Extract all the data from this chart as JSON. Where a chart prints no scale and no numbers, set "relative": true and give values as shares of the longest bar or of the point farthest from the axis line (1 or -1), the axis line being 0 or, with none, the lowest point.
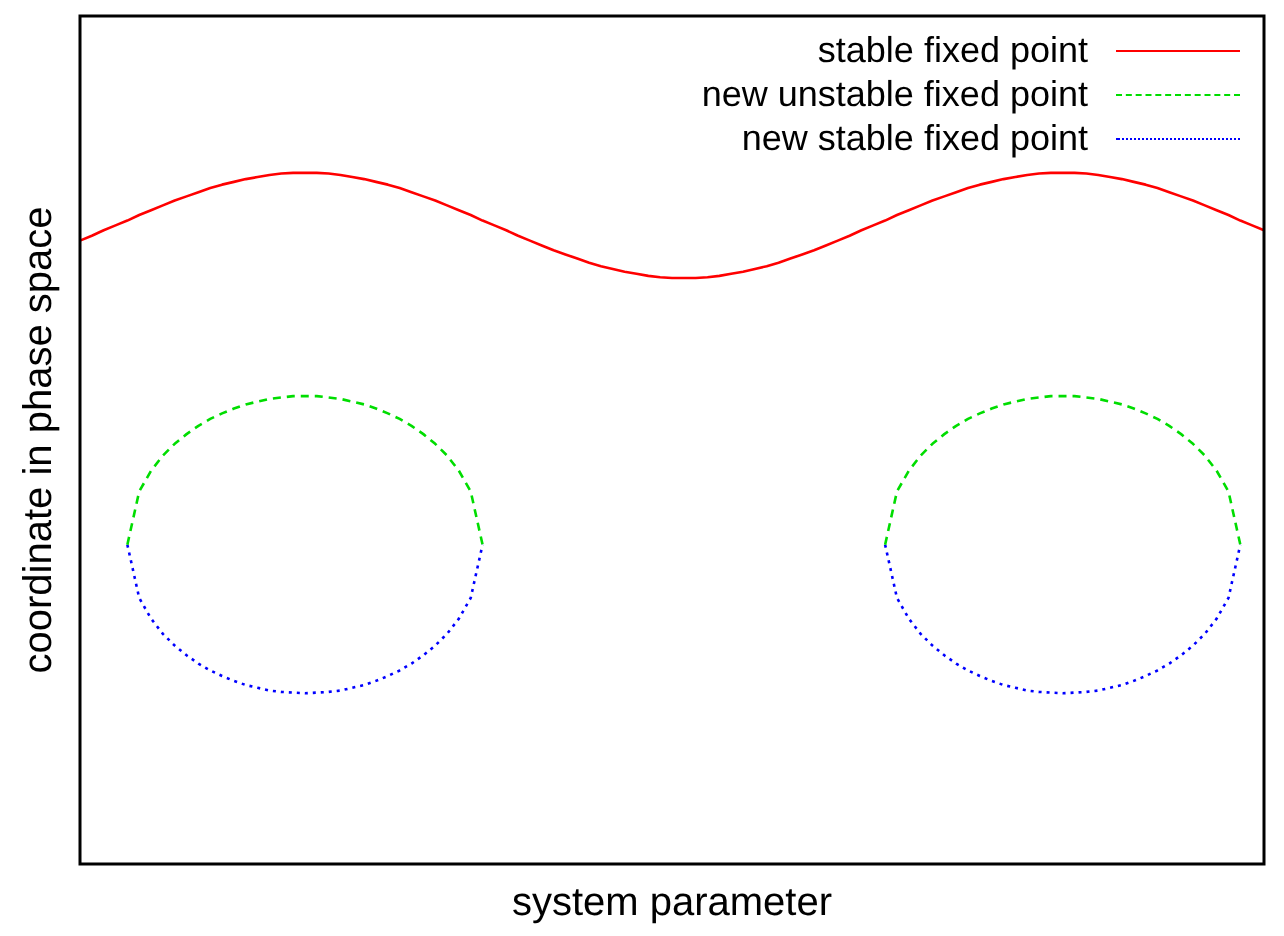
{
  "chart_data": {
    "type": "line",
    "relative": true,
    "xlabel": "system parameter",
    "ylabel": "coordinate in phase space",
    "legend": "top right",
    "tick_labels": false,
    "categories": [
      null,
      null,
      null,
      null,
      null,
      null,
      null,
      null,
      null,
      null,
      null,
      null,
      null,
      null,
      null,
      null,
      null,
      null,
      null,
      null,
      null,
      null,
      null,
      null,
      null,
      null,
      null,
      null,
      null,
      null,
      null,
      null,
      null,
      null,
      null,
      null,
      null,
      null,
      null,
      null,
      null,
      null,
      null,
      null,
      null,
      null,
      null,
      null,
      null,
      null,
      null,
      null,
      null,
      null,
      null,
      null,
      null,
      null,
      null,
      null,
      null,
      null,
      null,
      null,
      null,
      null,
      null,
      null,
      null,
      null,
      null,
      null,
      null,
      null,
      null,
      null,
      null,
      null,
      null,
      null,
      null,
      null,
      null,
      null,
      null,
      null,
      null,
      null,
      null,
      null,
      null,
      null,
      null,
      null,
      null,
      null,
      null,
      null,
      null,
      null,
      null
    ],
    "series": [
      {
        "name": "stable fixed point",
        "color": "#ff0000",
        "line_style": "solid",
        "values": [
          0.902,
          0.909,
          0.917,
          0.924,
          0.931,
          0.939,
          0.946,
          0.953,
          0.96,
          0.966,
          0.972,
          0.978,
          0.983,
          0.987,
          0.991,
          0.994,
          0.997,
          0.999,
          1.0,
          1.0,
          1.0,
          0.999,
          0.997,
          0.994,
          0.991,
          0.987,
          0.983,
          0.978,
          0.972,
          0.966,
          0.96,
          0.953,
          0.946,
          0.939,
          0.931,
          0.924,
          0.917,
          0.909,
          0.902,
          0.895,
          0.888,
          0.882,
          0.876,
          0.87,
          0.865,
          0.861,
          0.857,
          0.854,
          0.851,
          0.849,
          0.848,
          0.848,
          0.848,
          0.849,
          0.851,
          0.854,
          0.857,
          0.861,
          0.865,
          0.87,
          0.876,
          0.882,
          0.888,
          0.895,
          0.902,
          0.909,
          0.917,
          0.924,
          0.931,
          0.939,
          0.946,
          0.953,
          0.96,
          0.966,
          0.972,
          0.978,
          0.983,
          0.987,
          0.991,
          0.994,
          0.997,
          0.999,
          1.0,
          1.0,
          1.0,
          0.999,
          0.997,
          0.994,
          0.991,
          0.987,
          0.983,
          0.978,
          0.972,
          0.966,
          0.96,
          0.953,
          0.946,
          0.939,
          0.931,
          0.924,
          0.917
        ]
      },
      {
        "name": "new unstable fixed point",
        "color": "#00dd00",
        "line_style": "dashed",
        "values": [
          null,
          null,
          null,
          null,
          0.462,
          0.539,
          0.569,
          0.591,
          0.608,
          0.622,
          0.634,
          0.644,
          0.652,
          0.659,
          0.665,
          0.669,
          0.673,
          0.675,
          0.677,
          0.677,
          0.677,
          0.675,
          0.673,
          0.669,
          0.665,
          0.659,
          0.652,
          0.644,
          0.634,
          0.622,
          0.608,
          0.591,
          0.569,
          0.539,
          0.462,
          null,
          null,
          null,
          null,
          null,
          null,
          null,
          null,
          null,
          null,
          null,
          null,
          null,
          null,
          null,
          null,
          null,
          null,
          null,
          null,
          null,
          null,
          null,
          null,
          null,
          null,
          null,
          null,
          null,
          null,
          null,
          null,
          null,
          0.462,
          0.539,
          0.569,
          0.591,
          0.608,
          0.622,
          0.634,
          0.644,
          0.652,
          0.659,
          0.665,
          0.669,
          0.673,
          0.675,
          0.677,
          0.677,
          0.677,
          0.675,
          0.673,
          0.669,
          0.665,
          0.659,
          0.652,
          0.644,
          0.634,
          0.622,
          0.608,
          0.591,
          0.569,
          0.539,
          0.462,
          null,
          null
        ]
      },
      {
        "name": "new stable fixed point",
        "color": "#0000ff",
        "line_style": "dotted",
        "values": [
          null,
          null,
          null,
          null,
          0.462,
          0.385,
          0.355,
          0.333,
          0.316,
          0.302,
          0.29,
          0.28,
          0.272,
          0.265,
          0.259,
          0.255,
          0.251,
          0.249,
          0.248,
          0.247,
          0.248,
          0.249,
          0.251,
          0.255,
          0.259,
          0.265,
          0.272,
          0.28,
          0.29,
          0.302,
          0.316,
          0.333,
          0.355,
          0.385,
          0.462,
          null,
          null,
          null,
          null,
          null,
          null,
          null,
          null,
          null,
          null,
          null,
          null,
          null,
          null,
          null,
          null,
          null,
          null,
          null,
          null,
          null,
          null,
          null,
          null,
          null,
          null,
          null,
          null,
          null,
          null,
          null,
          null,
          null,
          0.462,
          0.385,
          0.355,
          0.333,
          0.316,
          0.302,
          0.29,
          0.28,
          0.272,
          0.265,
          0.259,
          0.255,
          0.251,
          0.249,
          0.248,
          0.247,
          0.248,
          0.249,
          0.251,
          0.255,
          0.259,
          0.265,
          0.272,
          0.28,
          0.29,
          0.302,
          0.316,
          0.333,
          0.355,
          0.385,
          0.462,
          null,
          null
        ]
      }
    ]
  }
}
